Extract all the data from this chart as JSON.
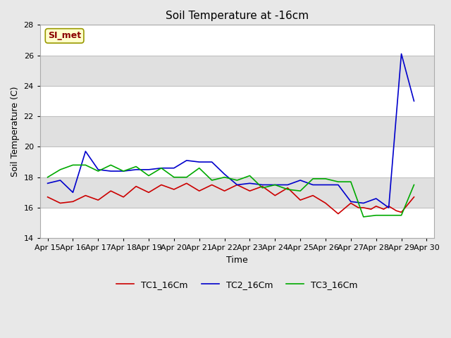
{
  "title": "Soil Temperature at -16cm",
  "xlabel": "Time",
  "ylabel": "Soil Temperature (C)",
  "ylim": [
    14,
    28
  ],
  "yticks": [
    14,
    16,
    18,
    20,
    22,
    24,
    26,
    28
  ],
  "fig_bg_color": "#e8e8e8",
  "plot_bg_color": "#e8e8e8",
  "band_colors": [
    "#ffffff",
    "#e0e0e0"
  ],
  "grid_color": "#c0c0c0",
  "annotation_text": "SI_met",
  "annotation_bg": "#ffffcc",
  "annotation_text_color": "#8b0000",
  "legend_labels": [
    "TC1_16Cm",
    "TC2_16Cm",
    "TC3_16Cm"
  ],
  "line_colors": [
    "#cc0000",
    "#0000cc",
    "#00aa00"
  ],
  "x_labels": [
    "Apr 15",
    "Apr 16",
    "Apr 17",
    "Apr 18",
    "Apr 19",
    "Apr 20",
    "Apr 21",
    "Apr 22",
    "Apr 23",
    "Apr 24",
    "Apr 25",
    "Apr 26",
    "Apr 27",
    "Apr 28",
    "Apr 29",
    "Apr 30"
  ],
  "TC1_x": [
    0,
    0.5,
    1,
    1.5,
    2,
    2.5,
    3,
    3.5,
    4,
    4.5,
    5,
    5.5,
    6,
    6.5,
    7,
    7.5,
    8,
    8.5,
    9,
    9.5,
    10,
    10.5,
    11,
    11.5,
    12,
    12.3,
    12.5,
    12.8,
    13,
    13.3,
    13.5,
    13.8,
    14,
    14.5
  ],
  "TC1_y": [
    16.7,
    16.3,
    16.4,
    16.8,
    16.5,
    17.1,
    16.7,
    17.4,
    17.0,
    17.5,
    17.2,
    17.6,
    17.1,
    17.5,
    17.1,
    17.5,
    17.1,
    17.4,
    16.8,
    17.3,
    16.5,
    16.8,
    16.3,
    15.6,
    16.3,
    16.0,
    16.0,
    15.9,
    16.1,
    15.9,
    16.1,
    15.8,
    15.7,
    16.7
  ],
  "TC2_x": [
    0,
    0.5,
    1,
    1.5,
    2,
    2.5,
    3,
    3.5,
    4,
    4.5,
    5,
    5.5,
    6,
    6.5,
    7,
    7.5,
    8,
    8.5,
    9,
    9.5,
    10,
    10.5,
    11,
    11.5,
    12,
    12.5,
    13,
    13.5,
    14,
    14.5
  ],
  "TC2_y": [
    17.6,
    17.8,
    17.0,
    19.7,
    18.5,
    18.4,
    18.4,
    18.5,
    18.5,
    18.6,
    18.6,
    19.1,
    19.0,
    19.0,
    18.2,
    17.5,
    17.6,
    17.5,
    17.5,
    17.5,
    17.8,
    17.5,
    17.5,
    17.5,
    16.4,
    16.3,
    16.6,
    16.0,
    26.1,
    23.0
  ],
  "TC3_x": [
    0,
    0.5,
    1,
    1.5,
    2,
    2.5,
    3,
    3.5,
    4,
    4.5,
    5,
    5.5,
    6,
    6.5,
    7,
    7.5,
    8,
    8.5,
    9,
    9.5,
    10,
    10.5,
    11,
    11.5,
    12,
    12.5,
    13,
    13.5,
    14,
    14.5
  ],
  "TC3_y": [
    18.0,
    18.5,
    18.8,
    18.8,
    18.4,
    18.8,
    18.4,
    18.7,
    18.1,
    18.6,
    18.0,
    18.0,
    18.6,
    17.8,
    18.0,
    17.8,
    18.1,
    17.3,
    17.5,
    17.2,
    17.1,
    17.9,
    17.9,
    17.7,
    17.7,
    15.4,
    15.5,
    15.5,
    15.5,
    17.5
  ]
}
